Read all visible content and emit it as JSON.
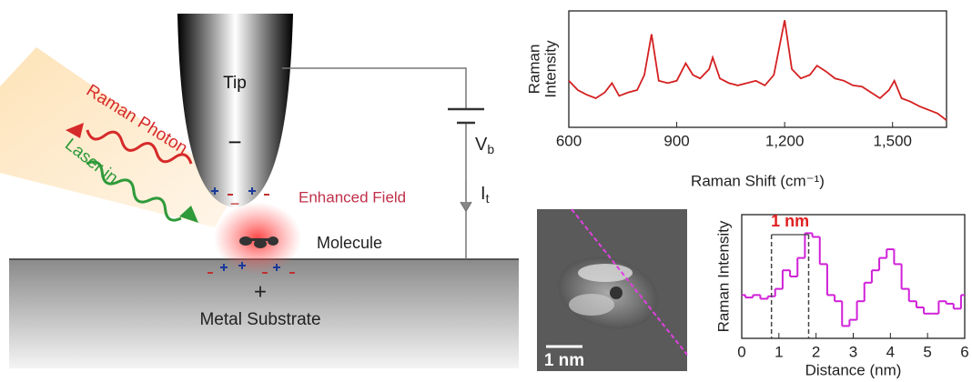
{
  "diagram": {
    "tip": "Tip",
    "tip_charge": "−",
    "raman_photon": "Raman Photon",
    "laser_in": "Laser in",
    "enhanced_field": "Enhanced Field",
    "molecule": "Molecule",
    "substrate_charge": "+",
    "substrate": "Metal Substrate",
    "bias": {
      "main": "V",
      "sub": "b"
    },
    "current": {
      "main": "I",
      "sub": "t"
    },
    "scale_bar": "1 nm"
  },
  "chart_data": [
    {
      "type": "line",
      "color": "#d42020",
      "x_label": "Raman Shift (cm⁻¹)",
      "y_label": [
        "Raman",
        "Intensity"
      ],
      "x": [
        600,
        625,
        650,
        675,
        700,
        720,
        740,
        765,
        790,
        810,
        830,
        850,
        875,
        900,
        925,
        945,
        965,
        990,
        1000,
        1020,
        1045,
        1070,
        1095,
        1120,
        1145,
        1170,
        1200,
        1220,
        1245,
        1270,
        1290,
        1315,
        1340,
        1365,
        1390,
        1415,
        1440,
        1465,
        1490,
        1505,
        1525,
        1550,
        1575,
        1600,
        1625,
        1650
      ],
      "values": [
        0.4,
        0.32,
        0.28,
        0.25,
        0.3,
        0.38,
        0.27,
        0.3,
        0.32,
        0.45,
        0.8,
        0.4,
        0.38,
        0.4,
        0.55,
        0.45,
        0.42,
        0.5,
        0.6,
        0.42,
        0.38,
        0.36,
        0.38,
        0.4,
        0.36,
        0.45,
        0.92,
        0.5,
        0.42,
        0.45,
        0.53,
        0.48,
        0.42,
        0.4,
        0.36,
        0.35,
        0.3,
        0.25,
        0.32,
        0.4,
        0.25,
        0.22,
        0.18,
        0.15,
        0.12,
        0.06
      ],
      "xlim": [
        600,
        1650
      ],
      "xticks": [
        600,
        900,
        {
          "value": 1200,
          "label": "1,200"
        },
        {
          "value": 1500,
          "label": "1,500"
        }
      ],
      "ylim": [
        0,
        1
      ]
    },
    {
      "type": "line",
      "step": true,
      "color": "#d020d8",
      "x_label": "Distance (nm)",
      "y_label": [
        "Raman Intensity"
      ],
      "annotation": "1 nm",
      "annotation_color": "#e02020",
      "marker_x": [
        0.8,
        1.8
      ],
      "x": [
        0,
        0.2,
        0.4,
        0.6,
        0.8,
        1.0,
        1.2,
        1.4,
        1.6,
        1.8,
        2.0,
        2.2,
        2.4,
        2.6,
        2.8,
        3.0,
        3.2,
        3.4,
        3.6,
        3.8,
        4.0,
        4.2,
        4.4,
        4.6,
        4.8,
        5.0,
        5.2,
        5.4,
        5.6,
        5.8,
        6.0
      ],
      "values": [
        0.35,
        0.33,
        0.35,
        0.32,
        0.34,
        0.4,
        0.55,
        0.5,
        0.65,
        0.85,
        0.82,
        0.6,
        0.35,
        0.3,
        0.1,
        0.15,
        0.3,
        0.45,
        0.55,
        0.65,
        0.72,
        0.6,
        0.4,
        0.3,
        0.25,
        0.2,
        0.2,
        0.3,
        0.28,
        0.24,
        0.35
      ],
      "xlim": [
        0,
        6
      ],
      "xticks": [
        0,
        1,
        2,
        3,
        4,
        5,
        6
      ],
      "ylim": [
        0,
        1
      ]
    }
  ]
}
